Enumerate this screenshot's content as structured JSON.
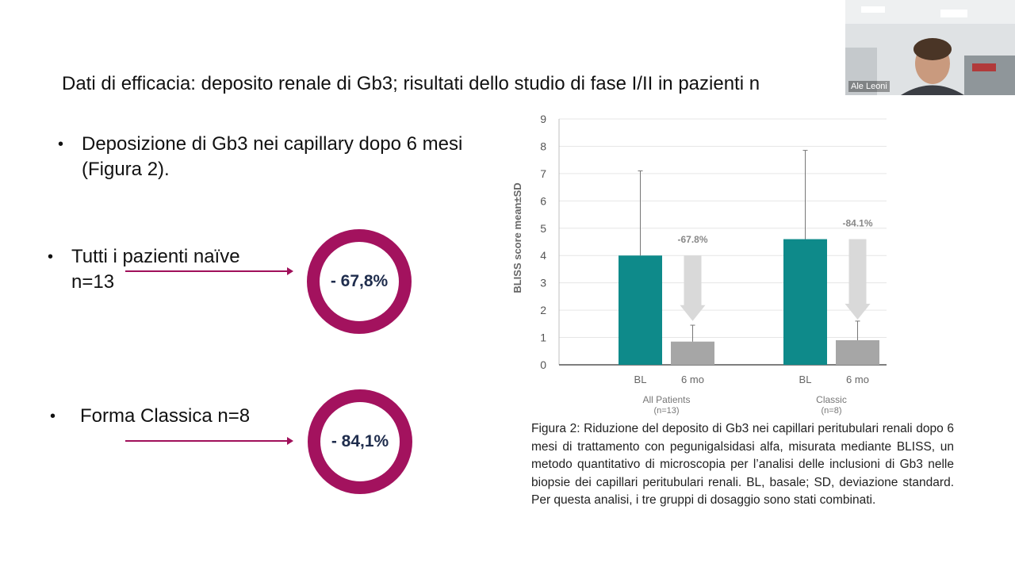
{
  "slide": {
    "title": "Dati di efficacia: deposito renale di Gb3; risultati dello studio di fase I/II in pazienti n"
  },
  "bullets": {
    "main": "Deposizione di Gb3 nei capillary dopo 6 mesi (Figura 2).",
    "group1_line1": "Tutti i pazienti naïve",
    "group1_line2": "n=13",
    "group2": "Forma Classica n=8"
  },
  "rings": {
    "ring1": "- 67,8%",
    "ring2": "- 84,1%"
  },
  "caption": "Figura 2: Riduzione del deposito di Gb3 nei capillari peritubulari renali dopo 6 mesi di trattamento con pegunigalsidasi alfa, misurata mediante BLISS, un metodo quantitativo di microscopia per l’analisi delle inclusioni di Gb3 nelle biopsie dei capillari peritubulari renali. BL, basale; SD, deviazione standard. Per questa analisi, i tre gruppi di dosaggio sono stati combinati.",
  "webcam": {
    "name": "Ale Leoni"
  },
  "colors": {
    "accent": "#a3125e",
    "teal": "#0e8a8a",
    "gray_bar": "#a6a6a6",
    "arrow": "#d9d9d9"
  },
  "chart_data": {
    "type": "bar",
    "ylabel": "BLISS score mean±SD",
    "ylim": [
      0,
      9
    ],
    "yticks": [
      0,
      1,
      2,
      3,
      4,
      5,
      6,
      7,
      8,
      9
    ],
    "grid": true,
    "groups": [
      {
        "name": "All Patients",
        "n": "(n=13)",
        "bars": [
          {
            "label": "BL",
            "value": 4.0,
            "sd_upper": 7.1,
            "color": "teal"
          },
          {
            "label": "6 mo",
            "value": 0.85,
            "sd_upper": 1.45,
            "color": "gray"
          }
        ],
        "reduction": "-67.8%"
      },
      {
        "name": "Classic",
        "n": "(n=8)",
        "bars": [
          {
            "label": "BL",
            "value": 4.6,
            "sd_upper": 7.85,
            "color": "teal"
          },
          {
            "label": "6 mo",
            "value": 0.9,
            "sd_upper": 1.6,
            "color": "gray"
          }
        ],
        "reduction": "-84.1%"
      }
    ]
  }
}
